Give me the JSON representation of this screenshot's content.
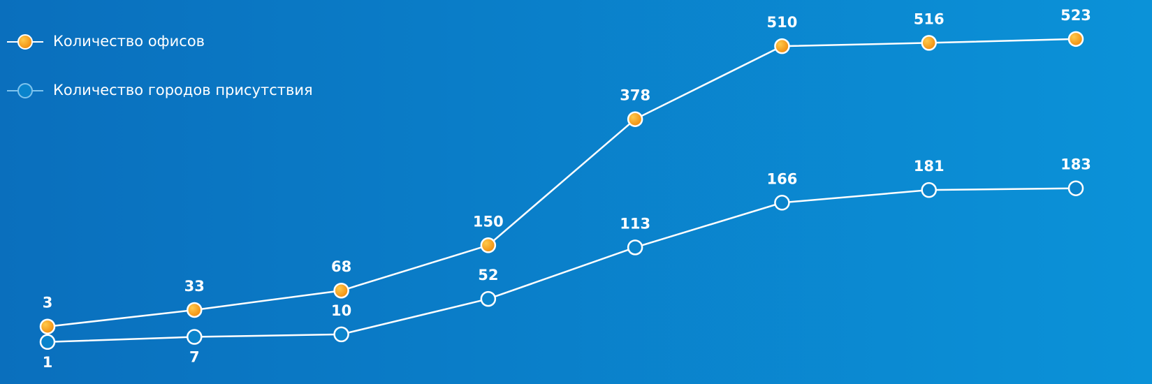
{
  "chart_data": {
    "type": "line",
    "categories": [
      null,
      null,
      null,
      null,
      null,
      null,
      null,
      null
    ],
    "series": [
      {
        "name": "Количество офисов",
        "color": "#f7a21b",
        "values": [
          3,
          33,
          68,
          150,
          378,
          510,
          516,
          523
        ]
      },
      {
        "name": "Количество городов присутствия",
        "color": "#0a84cc",
        "axis": "y2",
        "values": [
          1,
          7,
          10,
          52,
          113,
          166,
          181,
          183
        ]
      }
    ],
    "ylim": [
      -63,
      543
    ],
    "y2lim": [
      -24,
      373
    ],
    "legend": "top-left"
  }
}
